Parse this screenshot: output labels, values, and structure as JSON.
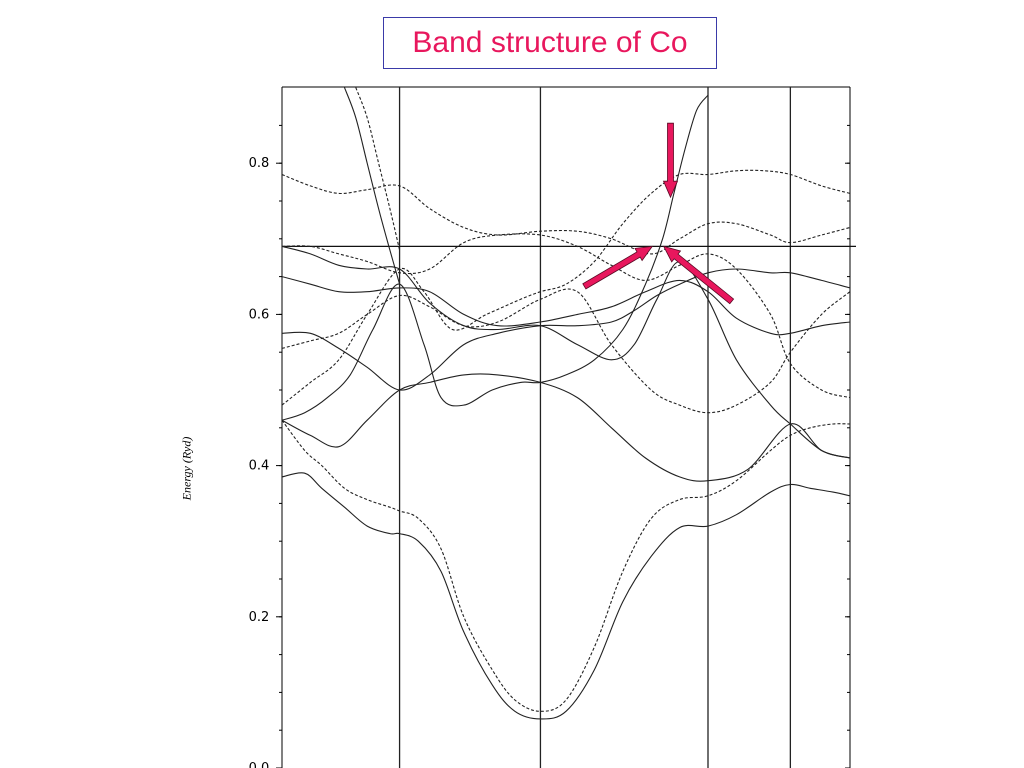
{
  "title": "Band structure of Co",
  "colors": {
    "title": "#e8175d",
    "title_border": "#3a3aa8",
    "arrows": "#e8175d",
    "lines": "#222222"
  },
  "chart_data": {
    "type": "line",
    "title": "Band structure of Co",
    "xlabel": "",
    "ylabel": "Energy (Ryd)",
    "ylim": [
      0.0,
      0.9
    ],
    "yticks": [
      0.0,
      0.2,
      0.4,
      0.6,
      0.8
    ],
    "ytick_labels": [
      "0.0",
      "0.2",
      "0.4",
      "0.6",
      "0.8"
    ],
    "fermi_energy": 0.69,
    "k_symmetry_points": [
      0,
      0.207,
      0.455,
      0.75,
      0.895,
      1
    ],
    "grid": false,
    "line_styles": [
      "solid (majority spin)",
      "dashed (minority spin)"
    ],
    "annotations": [
      {
        "type": "arrow",
        "direction": "down",
        "points_to": [
          0.684,
          0.755
        ]
      },
      {
        "type": "arrow",
        "direction": "up-right",
        "points_to": [
          0.652,
          0.69
        ]
      },
      {
        "type": "arrow",
        "direction": "up-left",
        "points_to": [
          0.672,
          0.69
        ]
      }
    ],
    "series": [
      {
        "style": "solid",
        "x": [
          0,
          0.04,
          0.07,
          0.11,
          0.15,
          0.19,
          0.207,
          0.24,
          0.28,
          0.32,
          0.37,
          0.41,
          0.455,
          0.5,
          0.55,
          0.6,
          0.65,
          0.7,
          0.75,
          0.8,
          0.86,
          0.895,
          0.93,
          0.97,
          1.0
        ],
        "y": [
          0.385,
          0.39,
          0.37,
          0.345,
          0.32,
          0.31,
          0.31,
          0.3,
          0.26,
          0.18,
          0.11,
          0.075,
          0.065,
          0.075,
          0.13,
          0.22,
          0.28,
          0.318,
          0.32,
          0.335,
          0.365,
          0.375,
          0.37,
          0.365,
          0.36
        ]
      },
      {
        "style": "dashed",
        "x": [
          0,
          0.04,
          0.07,
          0.11,
          0.15,
          0.19,
          0.207,
          0.24,
          0.28,
          0.32,
          0.37,
          0.41,
          0.455,
          0.5,
          0.55,
          0.6,
          0.65,
          0.7,
          0.75,
          0.8,
          0.86,
          0.895,
          0.93,
          0.97,
          1.0
        ],
        "y": [
          0.46,
          0.42,
          0.4,
          0.37,
          0.355,
          0.345,
          0.34,
          0.33,
          0.29,
          0.2,
          0.13,
          0.09,
          0.075,
          0.09,
          0.16,
          0.26,
          0.33,
          0.355,
          0.36,
          0.38,
          0.42,
          0.44,
          0.45,
          0.455,
          0.455
        ]
      },
      {
        "style": "solid",
        "x": [
          0,
          0.05,
          0.1,
          0.15,
          0.207,
          0.26,
          0.32,
          0.38,
          0.455,
          0.52,
          0.58,
          0.64,
          0.7,
          0.75,
          0.82,
          0.895,
          0.95,
          1.0
        ],
        "y": [
          0.46,
          0.44,
          0.425,
          0.46,
          0.5,
          0.51,
          0.52,
          0.52,
          0.51,
          0.49,
          0.45,
          0.41,
          0.385,
          0.38,
          0.395,
          0.455,
          0.42,
          0.41
        ]
      },
      {
        "style": "solid",
        "x": [
          0,
          0.04,
          0.08,
          0.12,
          0.16,
          0.207,
          0.25,
          0.28,
          0.32,
          0.37,
          0.42,
          0.455,
          0.5,
          0.55,
          0.6,
          0.64,
          0.67,
          0.69,
          0.71,
          0.73,
          0.75
        ],
        "y": [
          0.46,
          0.47,
          0.49,
          0.52,
          0.58,
          0.64,
          0.56,
          0.49,
          0.48,
          0.5,
          0.51,
          0.51,
          0.52,
          0.54,
          0.58,
          0.64,
          0.7,
          0.76,
          0.82,
          0.87,
          0.89
        ]
      },
      {
        "style": "dashed",
        "x": [
          0,
          0.05,
          0.1,
          0.15,
          0.207,
          0.25,
          0.3,
          0.36,
          0.42,
          0.455,
          0.5,
          0.55,
          0.6,
          0.65,
          0.7,
          0.75,
          0.8,
          0.85,
          0.895,
          0.95,
          1.0
        ],
        "y": [
          0.48,
          0.51,
          0.54,
          0.6,
          0.66,
          0.63,
          0.58,
          0.6,
          0.62,
          0.63,
          0.64,
          0.67,
          0.72,
          0.76,
          0.785,
          0.785,
          0.79,
          0.79,
          0.785,
          0.77,
          0.76
        ]
      },
      {
        "style": "solid",
        "x": [
          0,
          0.05,
          0.1,
          0.15,
          0.207,
          0.26,
          0.32,
          0.38,
          0.455,
          0.52,
          0.58,
          0.62,
          0.66,
          0.7,
          0.75,
          0.8,
          0.86,
          0.895,
          0.95,
          1.0
        ],
        "y": [
          0.575,
          0.575,
          0.555,
          0.53,
          0.5,
          0.52,
          0.56,
          0.575,
          0.585,
          0.585,
          0.59,
          0.605,
          0.625,
          0.64,
          0.655,
          0.66,
          0.655,
          0.655,
          0.645,
          0.635
        ]
      },
      {
        "style": "dashed",
        "x": [
          0,
          0.05,
          0.1,
          0.15,
          0.207,
          0.26,
          0.32,
          0.38,
          0.455,
          0.52,
          0.58,
          0.65,
          0.7,
          0.75,
          0.8,
          0.86,
          0.895,
          0.95,
          1.0
        ],
        "y": [
          0.555,
          0.565,
          0.575,
          0.6,
          0.625,
          0.61,
          0.585,
          0.59,
          0.62,
          0.63,
          0.56,
          0.5,
          0.48,
          0.47,
          0.48,
          0.51,
          0.55,
          0.6,
          0.63
        ]
      },
      {
        "style": "solid",
        "x": [
          0,
          0.05,
          0.1,
          0.15,
          0.207,
          0.26,
          0.32,
          0.38,
          0.455,
          0.52,
          0.58,
          0.64,
          0.7,
          0.75,
          0.8,
          0.86,
          0.895,
          0.95,
          1.0
        ],
        "y": [
          0.65,
          0.64,
          0.63,
          0.63,
          0.635,
          0.63,
          0.6,
          0.585,
          0.59,
          0.6,
          0.61,
          0.63,
          0.645,
          0.63,
          0.595,
          0.575,
          0.575,
          0.585,
          0.59
        ]
      },
      {
        "style": "solid",
        "x": [
          0,
          0.05,
          0.1,
          0.15,
          0.207,
          0.26,
          0.32,
          0.38,
          0.455,
          0.52,
          0.58,
          0.62,
          0.66,
          0.7,
          0.75,
          0.8,
          0.86,
          0.895,
          0.95,
          1.0
        ],
        "y": [
          0.69,
          0.68,
          0.665,
          0.66,
          0.66,
          0.615,
          0.585,
          0.58,
          0.585,
          0.56,
          0.54,
          0.56,
          0.62,
          0.67,
          0.62,
          0.54,
          0.48,
          0.455,
          0.42,
          0.41
        ]
      },
      {
        "style": "dashed",
        "x": [
          0,
          0.05,
          0.1,
          0.15,
          0.207,
          0.26,
          0.32,
          0.38,
          0.455,
          0.52,
          0.58,
          0.65,
          0.7,
          0.75,
          0.8,
          0.86,
          0.895,
          0.95,
          1.0
        ],
        "y": [
          0.785,
          0.77,
          0.76,
          0.765,
          0.77,
          0.74,
          0.715,
          0.705,
          0.71,
          0.71,
          0.7,
          0.68,
          0.7,
          0.72,
          0.72,
          0.705,
          0.695,
          0.705,
          0.715
        ]
      },
      {
        "style": "dashed",
        "x": [
          0,
          0.05,
          0.1,
          0.15,
          0.207,
          0.26,
          0.32,
          0.38,
          0.455,
          0.52,
          0.58,
          0.64,
          0.7,
          0.75,
          0.8,
          0.86,
          0.895,
          0.95,
          1.0
        ],
        "y": [
          0.69,
          0.69,
          0.68,
          0.67,
          0.655,
          0.66,
          0.695,
          0.705,
          0.705,
          0.69,
          0.665,
          0.645,
          0.665,
          0.68,
          0.66,
          0.6,
          0.535,
          0.5,
          0.49
        ]
      },
      {
        "style": "solid",
        "x": [
          0.11,
          0.13,
          0.15,
          0.17,
          0.19,
          0.207
        ],
        "y": [
          0.9,
          0.86,
          0.8,
          0.74,
          0.685,
          0.64
        ]
      },
      {
        "style": "dashed",
        "x": [
          0.13,
          0.15,
          0.17,
          0.19,
          0.207
        ],
        "y": [
          0.9,
          0.86,
          0.8,
          0.74,
          0.685
        ]
      }
    ]
  }
}
